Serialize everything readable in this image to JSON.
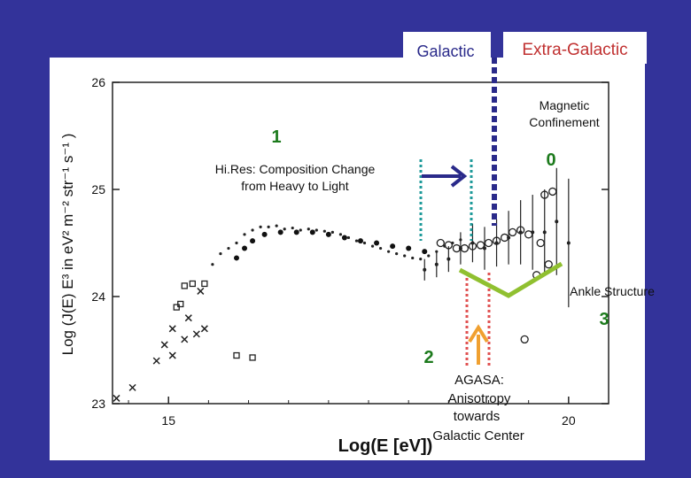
{
  "slide": {
    "colors": {
      "background": "#33339a",
      "plot_panel": "#ffffff",
      "teal": "#1e9a9a",
      "navy": "#2a2a8a",
      "red": "#e05050",
      "orange": "#f0a030",
      "green": "#90c030",
      "label_green": "#1c7a1c"
    },
    "region_labels": {
      "galactic": "Galactic",
      "extra_galactic": "Extra-Galactic"
    },
    "annotations": {
      "marker_0": "0",
      "magnetic_line1": "Magnetic",
      "magnetic_line2": "Confinement",
      "marker_1": "1",
      "hires_line1": "Hi.Res: Composition Change",
      "hires_line2": "from Heavy to Light",
      "marker_2": "2",
      "agasa_line1": "AGASA:",
      "agasa_line2": "Anisotropy",
      "agasa_line3": "towards",
      "agasa_line4": "Galactic Center",
      "marker_3": "3",
      "ankle": "Ankle Structure"
    }
  },
  "chart_data": {
    "type": "scatter",
    "xlabel": "Log(E [eV])",
    "ylabel": "Log (J(E)  E³  in eV² m⁻² str⁻¹ s⁻¹ )",
    "xlim": [
      14.3,
      20.5
    ],
    "ylim": [
      23,
      26
    ],
    "x_ticks": [
      {
        "value": 15,
        "label": "15"
      },
      {
        "value": 20,
        "label": "20"
      }
    ],
    "y_ticks": [
      {
        "value": 23,
        "label": "23"
      },
      {
        "value": 24,
        "label": "24"
      },
      {
        "value": 25,
        "label": "25"
      },
      {
        "value": 26,
        "label": "26"
      }
    ],
    "grid": false,
    "series": [
      {
        "marker": "x",
        "points": [
          [
            14.35,
            23.05
          ],
          [
            14.55,
            23.15
          ],
          [
            14.85,
            23.4
          ],
          [
            15.05,
            23.45
          ],
          [
            15.2,
            23.6
          ],
          [
            15.35,
            23.65
          ],
          [
            15.45,
            23.7
          ],
          [
            14.95,
            23.55
          ],
          [
            15.25,
            23.8
          ],
          [
            15.4,
            24.05
          ],
          [
            15.05,
            23.7
          ]
        ]
      },
      {
        "marker": "square",
        "points": [
          [
            15.1,
            23.9
          ],
          [
            15.15,
            23.93
          ],
          [
            15.2,
            24.1
          ],
          [
            15.3,
            24.12
          ],
          [
            15.45,
            24.12
          ],
          [
            15.85,
            23.45
          ],
          [
            16.05,
            23.43
          ]
        ]
      },
      {
        "marker": "dot",
        "points": [
          [
            15.55,
            24.3
          ],
          [
            15.65,
            24.4
          ],
          [
            15.75,
            24.45
          ],
          [
            15.85,
            24.5
          ],
          [
            15.95,
            24.58
          ],
          [
            16.05,
            24.62
          ],
          [
            16.15,
            24.65
          ],
          [
            16.25,
            24.65
          ],
          [
            16.35,
            24.66
          ],
          [
            16.45,
            24.63
          ],
          [
            16.55,
            24.64
          ],
          [
            16.65,
            24.62
          ],
          [
            16.75,
            24.63
          ],
          [
            16.85,
            24.62
          ],
          [
            16.95,
            24.61
          ],
          [
            17.05,
            24.6
          ],
          [
            17.15,
            24.58
          ],
          [
            17.25,
            24.55
          ],
          [
            17.35,
            24.52
          ],
          [
            17.45,
            24.5
          ],
          [
            17.55,
            24.47
          ],
          [
            17.65,
            24.45
          ],
          [
            17.75,
            24.42
          ],
          [
            17.85,
            24.4
          ],
          [
            17.95,
            24.38
          ],
          [
            18.05,
            24.36
          ],
          [
            18.15,
            24.35
          ],
          [
            18.25,
            24.38
          ],
          [
            18.35,
            24.42
          ],
          [
            18.45,
            24.47
          ],
          [
            18.55,
            24.5
          ],
          [
            18.65,
            24.53
          ]
        ]
      },
      {
        "marker": "filled-circle",
        "points": [
          [
            15.85,
            24.36
          ],
          [
            15.95,
            24.45
          ],
          [
            16.05,
            24.52
          ],
          [
            16.2,
            24.58
          ],
          [
            16.4,
            24.6
          ],
          [
            16.6,
            24.6
          ],
          [
            16.8,
            24.6
          ],
          [
            17.0,
            24.58
          ],
          [
            17.2,
            24.55
          ],
          [
            17.4,
            24.52
          ],
          [
            17.6,
            24.5
          ],
          [
            17.8,
            24.47
          ],
          [
            18.0,
            24.45
          ],
          [
            18.2,
            24.42
          ]
        ]
      },
      {
        "marker": "error-bar",
        "points": [
          [
            18.2,
            24.25
          ],
          [
            18.35,
            24.3
          ],
          [
            18.5,
            24.35
          ],
          [
            18.65,
            24.45
          ],
          [
            18.8,
            24.5
          ],
          [
            18.95,
            24.45
          ],
          [
            19.1,
            24.5
          ],
          [
            19.25,
            24.55
          ],
          [
            19.4,
            24.6
          ],
          [
            19.55,
            24.6
          ],
          [
            19.7,
            24.6
          ],
          [
            19.85,
            24.7
          ],
          [
            20.0,
            24.5
          ]
        ],
        "errors": [
          0.1,
          0.12,
          0.12,
          0.15,
          0.18,
          0.2,
          0.22,
          0.25,
          0.3,
          0.35,
          0.4,
          0.5,
          0.6
        ]
      },
      {
        "marker": "open-circle",
        "points": [
          [
            18.4,
            24.5
          ],
          [
            18.5,
            24.48
          ],
          [
            18.6,
            24.45
          ],
          [
            18.7,
            24.45
          ],
          [
            18.8,
            24.47
          ],
          [
            18.9,
            24.48
          ],
          [
            19.0,
            24.5
          ],
          [
            19.1,
            24.52
          ],
          [
            19.2,
            24.55
          ],
          [
            19.3,
            24.6
          ],
          [
            19.4,
            24.62
          ],
          [
            19.5,
            24.58
          ],
          [
            19.6,
            24.2
          ],
          [
            19.7,
            24.95
          ],
          [
            19.8,
            24.98
          ],
          [
            19.65,
            24.5
          ],
          [
            19.75,
            24.3
          ],
          [
            19.45,
            23.6
          ]
        ]
      }
    ]
  }
}
